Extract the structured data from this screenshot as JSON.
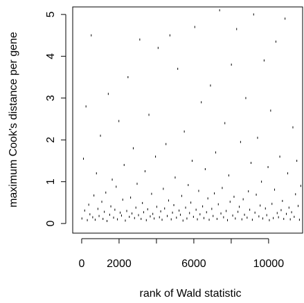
{
  "chart_data": {
    "type": "scatter",
    "xlabel": "rank of Wald statistic",
    "ylabel": "maximum Cook's distance per gene",
    "color": "#000000",
    "xlim": [
      -480,
      11820
    ],
    "ylim": [
      -0.23,
      5.18
    ],
    "xticks": [
      0,
      2000,
      6000,
      10000
    ],
    "xtick_marks": [
      0,
      2000,
      4000,
      6000,
      8000,
      10000
    ],
    "yticks": [
      0,
      1,
      2,
      3,
      4,
      5
    ],
    "x": [
      12,
      95,
      160,
      230,
      301,
      377,
      440,
      512,
      590,
      655,
      721,
      790,
      868,
      930,
      1004,
      1077,
      1140,
      1212,
      1290,
      1355,
      1423,
      1498,
      1560,
      1634,
      1707,
      1775,
      1846,
      1913,
      1990,
      2058,
      2130,
      2196,
      2271,
      2335,
      2410,
      2478,
      2549,
      2617,
      2690,
      2760,
      2828,
      2899,
      2965,
      3040,
      3108,
      3179,
      3250,
      3316,
      3390,
      3458,
      3530,
      3597,
      3668,
      3740,
      3805,
      3877,
      3950,
      4016,
      4089,
      4160,
      4228,
      4300,
      4368,
      4437,
      4510,
      4577,
      4649,
      4720,
      4790,
      4858,
      4930,
      5001,
      5070,
      5139,
      5210,
      5280,
      5350,
      5420,
      5490,
      5560,
      5630,
      5700,
      5770,
      5840,
      5910,
      5980,
      6050,
      6120,
      6190,
      6260,
      6330,
      6400,
      6470,
      6540,
      6610,
      6680,
      6750,
      6820,
      6890,
      6960,
      7030,
      7100,
      7170,
      7240,
      7310,
      7380,
      7450,
      7520,
      7590,
      7660,
      7730,
      7800,
      7870,
      7940,
      8010,
      8080,
      8150,
      8220,
      8290,
      8360,
      8430,
      8500,
      8570,
      8640,
      8710,
      8780,
      8850,
      8920,
      8990,
      9060,
      9130,
      9200,
      9270,
      9340,
      9410,
      9480,
      9550,
      9620,
      9690,
      9760,
      9830,
      9900,
      9970,
      10040,
      10110,
      10180,
      10250,
      10320,
      10390,
      10460,
      10530,
      10600,
      10670,
      10740,
      10810,
      10880,
      10950,
      11020,
      11090,
      11160,
      11230,
      11300,
      11370,
      11440,
      11510,
      11580,
      11650,
      11720
    ],
    "y": [
      0.12,
      1.55,
      0.31,
      2.8,
      0.08,
      0.45,
      0.22,
      4.5,
      0.15,
      0.67,
      0.09,
      1.2,
      0.35,
      0.18,
      2.1,
      0.52,
      0.11,
      0.28,
      0.74,
      0.06,
      3.1,
      0.21,
      0.41,
      1.05,
      0.14,
      0.33,
      0.88,
      0.1,
      2.45,
      0.26,
      0.19,
      0.57,
      1.4,
      0.07,
      0.3,
      3.5,
      0.16,
      0.62,
      0.24,
      1.8,
      0.13,
      0.38,
      0.95,
      0.2,
      4.4,
      0.11,
      0.49,
      0.27,
      1.25,
      0.08,
      0.34,
      2.6,
      0.17,
      0.71,
      0.23,
      0.12,
      1.6,
      0.4,
      4.2,
      0.15,
      0.29,
      0.09,
      0.83,
      0.36,
      1.9,
      0.18,
      0.55,
      4.5,
      0.1,
      0.26,
      0.44,
      1.1,
      0.14,
      3.7,
      0.31,
      0.21,
      0.66,
      0.07,
      2.2,
      0.38,
      0.12,
      0.92,
      0.25,
      0.5,
      1.5,
      0.16,
      4.7,
      0.33,
      0.1,
      0.78,
      0.22,
      2.9,
      0.41,
      0.13,
      1.3,
      0.27,
      0.6,
      0.09,
      3.3,
      0.35,
      0.18,
      0.72,
      1.7,
      0.11,
      0.46,
      5.1,
      0.24,
      0.85,
      0.15,
      2.4,
      0.3,
      0.08,
      1.15,
      0.52,
      3.8,
      0.19,
      0.64,
      0.12,
      4.65,
      0.28,
      0.4,
      1.95,
      0.1,
      0.58,
      0.21,
      3.0,
      0.14,
      0.77,
      0.33,
      1.45,
      0.09,
      5.0,
      0.26,
      0.69,
      2.05,
      0.17,
      0.43,
      1.0,
      0.12,
      3.9,
      0.36,
      0.2,
      1.35,
      0.08,
      2.7,
      0.47,
      0.13,
      0.81,
      4.35,
      0.25,
      0.15,
      1.6,
      0.32,
      0.54,
      0.11,
      4.9,
      0.23,
      1.2,
      0.38,
      0.1,
      0.27,
      2.3,
      0.16,
      0.7,
      1.5,
      0.42,
      0.09,
      0.9
    ]
  }
}
